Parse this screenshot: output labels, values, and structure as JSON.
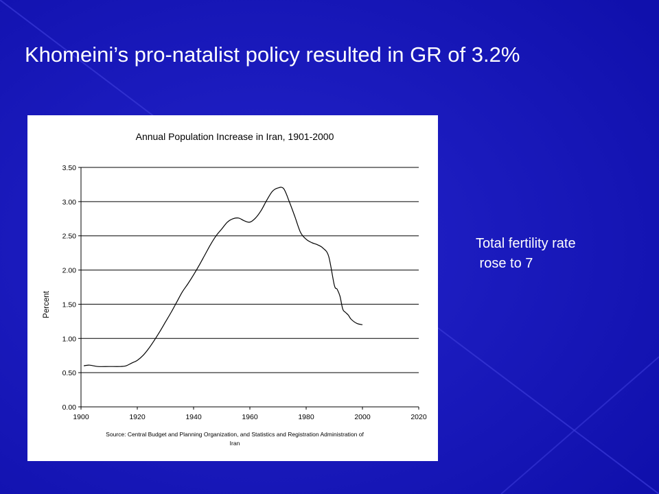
{
  "slide": {
    "title": "Khomeini’s pro-natalist policy resulted in GR of 3.2%",
    "note_line1": "Total fertility rate",
    "note_line2": " rose to 7",
    "colors": {
      "background": "#1414b4",
      "text": "#ffffff",
      "chart_background": "#ffffff",
      "line": "#000000"
    }
  },
  "chart_data": {
    "type": "line",
    "title": "Annual Population Increase in Iran, 1901-2000",
    "xlabel": "",
    "ylabel": "Percent",
    "source": "Source: Central Budget and Planning Organization, and Statistics and Registration Administration of Iran",
    "xlim": [
      1900,
      2020
    ],
    "ylim": [
      0,
      3.5
    ],
    "x_ticks": [
      "1900",
      "1920",
      "1940",
      "1960",
      "1980",
      "2000",
      "2020"
    ],
    "y_ticks": [
      "0.00",
      "0.50",
      "1.00",
      "1.50",
      "2.00",
      "2.50",
      "3.00",
      "3.50"
    ],
    "grid": true,
    "legend": "none",
    "series": [
      {
        "x": [
          1901,
          1903,
          1906,
          1910,
          1914,
          1916,
          1918,
          1920,
          1922,
          1924,
          1926,
          1928,
          1930,
          1932,
          1934,
          1936,
          1938,
          1940,
          1942,
          1944,
          1946,
          1948,
          1950,
          1952,
          1954,
          1956,
          1958,
          1960,
          1962,
          1964,
          1966,
          1968,
          1970,
          1972,
          1974,
          1976,
          1978,
          1980,
          1982,
          1984,
          1986,
          1988,
          1990,
          1991,
          1992,
          1993,
          1994,
          1995,
          1996,
          1998,
          2000
        ],
        "values": [
          0.6,
          0.61,
          0.59,
          0.59,
          0.59,
          0.6,
          0.64,
          0.68,
          0.75,
          0.85,
          0.97,
          1.1,
          1.24,
          1.38,
          1.53,
          1.68,
          1.8,
          1.93,
          2.07,
          2.22,
          2.37,
          2.5,
          2.6,
          2.7,
          2.75,
          2.76,
          2.72,
          2.7,
          2.76,
          2.87,
          3.02,
          3.15,
          3.2,
          3.19,
          3.0,
          2.78,
          2.55,
          2.45,
          2.4,
          2.37,
          2.32,
          2.2,
          1.78,
          1.72,
          1.62,
          1.43,
          1.38,
          1.34,
          1.28,
          1.22,
          1.2
        ]
      }
    ]
  }
}
